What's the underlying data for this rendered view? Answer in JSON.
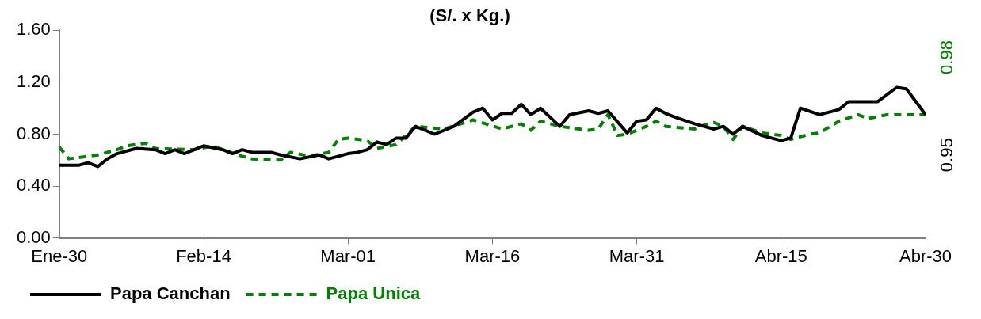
{
  "chart_data": {
    "type": "line",
    "title": "(S/. x Kg.)",
    "xlim": [
      "--01-30",
      "--04-30"
    ],
    "xticks": [
      {
        "value": "--01-30",
        "label": "Ene-30"
      },
      {
        "value": "--02-14",
        "label": "Feb-14"
      },
      {
        "value": "--03-01",
        "label": "Mar-01"
      },
      {
        "value": "--03-16",
        "label": "Mar-16"
      },
      {
        "value": "--03-31",
        "label": "Mar-31"
      },
      {
        "value": "--04-15",
        "label": "Abr-15"
      },
      {
        "value": "--04-30",
        "label": "Abr-30"
      }
    ],
    "ylim": [
      0,
      1.6
    ],
    "yticks": [
      {
        "value": 0,
        "label": "0.00"
      },
      {
        "value": 0.4,
        "label": "0.40"
      },
      {
        "value": 0.8,
        "label": "0.80"
      },
      {
        "value": 1.2,
        "label": "1.20"
      },
      {
        "value": 1.6,
        "label": "1.60"
      }
    ],
    "grid": false,
    "legend": "bottom left",
    "marker": "none",
    "series": [
      {
        "name": "Papa Canchan",
        "color": "#000000",
        "line_style": "solid",
        "x": [
          "--01-30",
          "--02-01",
          "--02-02",
          "--02-03",
          "--02-04",
          "--02-05",
          "--02-07",
          "--02-09",
          "--02-10",
          "--02-11",
          "--02-12",
          "--02-14",
          "--02-16",
          "--02-17",
          "--02-18",
          "--02-19",
          "--02-21",
          "--02-22",
          "--02-24",
          "--02-26",
          "--02-27",
          "--03-01",
          "--03-02",
          "--03-03",
          "--03-04",
          "--03-05",
          "--03-06",
          "--03-07",
          "--03-08",
          "--03-10",
          "--03-12",
          "--03-14",
          "--03-15",
          "--03-16",
          "--03-17",
          "--03-18",
          "--03-19",
          "--03-20",
          "--03-21",
          "--03-23",
          "--03-24",
          "--03-26",
          "--03-27",
          "--03-28",
          "--03-30",
          "--03-31",
          "--04-01",
          "--04-02",
          "--04-03",
          "--04-04",
          "--04-06",
          "--04-08",
          "--04-09",
          "--04-10",
          "--04-11",
          "--04-13",
          "--04-15",
          "--04-16",
          "--04-17",
          "--04-19",
          "--04-21",
          "--04-22",
          "--04-25",
          "--04-27",
          "--04-28",
          "--04-29",
          "--04-30"
        ],
        "values": [
          0.56,
          0.56,
          0.58,
          0.55,
          0.61,
          0.65,
          0.69,
          0.68,
          0.65,
          0.68,
          0.65,
          0.71,
          0.68,
          0.65,
          0.68,
          0.66,
          0.66,
          0.64,
          0.61,
          0.64,
          0.61,
          0.65,
          0.66,
          0.68,
          0.74,
          0.72,
          0.77,
          0.77,
          0.86,
          0.8,
          0.86,
          0.97,
          1.0,
          0.91,
          0.96,
          0.96,
          1.03,
          0.95,
          1.0,
          0.86,
          0.95,
          0.98,
          0.96,
          0.98,
          0.81,
          0.9,
          0.91,
          1.0,
          0.96,
          0.93,
          0.88,
          0.84,
          0.86,
          0.8,
          0.86,
          0.79,
          0.75,
          0.77,
          1.0,
          0.95,
          0.99,
          1.05,
          1.05,
          1.16,
          1.15,
          1.05,
          0.95
        ]
      },
      {
        "name": "Papa Unica",
        "color": "#008000",
        "line_style": "dashed",
        "x": [
          "--01-30",
          "--01-31",
          "--02-02",
          "--02-03",
          "--02-05",
          "--02-06",
          "--02-08",
          "--02-09",
          "--02-13",
          "--02-15",
          "--02-16",
          "--02-18",
          "--02-19",
          "--02-22",
          "--02-23",
          "--02-25",
          "--02-27",
          "--02-28",
          "--03-01",
          "--03-03",
          "--03-04",
          "--03-06",
          "--03-08",
          "--03-11",
          "--03-14",
          "--03-17",
          "--03-19",
          "--03-20",
          "--03-21",
          "--03-23",
          "--03-26",
          "--03-27",
          "--03-28",
          "--03-29",
          "--03-30",
          "--04-01",
          "--04-02",
          "--04-03",
          "--04-06",
          "--04-07",
          "--04-08",
          "--04-09",
          "--04-10",
          "--04-11",
          "--04-13",
          "--04-15",
          "--04-16",
          "--04-18",
          "--04-19",
          "--04-21",
          "--04-23",
          "--04-24",
          "--04-26",
          "--04-30"
        ],
        "values": [
          0.7,
          0.61,
          0.63,
          0.64,
          0.68,
          0.71,
          0.73,
          0.69,
          0.68,
          0.71,
          0.68,
          0.63,
          0.61,
          0.6,
          0.66,
          0.63,
          0.66,
          0.76,
          0.77,
          0.75,
          0.69,
          0.72,
          0.86,
          0.84,
          0.91,
          0.84,
          0.88,
          0.83,
          0.9,
          0.86,
          0.83,
          0.84,
          0.95,
          0.79,
          0.8,
          0.86,
          0.9,
          0.86,
          0.84,
          0.87,
          0.89,
          0.86,
          0.76,
          0.86,
          0.81,
          0.79,
          0.76,
          0.8,
          0.81,
          0.9,
          0.95,
          0.92,
          0.95,
          0.95
        ]
      }
    ],
    "annotations": [
      "0.95",
      "0.98"
    ]
  }
}
